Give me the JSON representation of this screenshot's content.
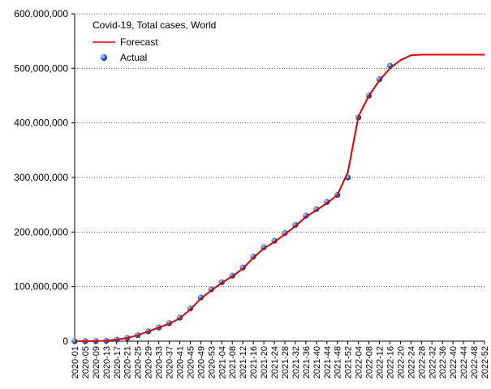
{
  "chart_data": {
    "type": "line",
    "legend_title": "Covid-19, Total cases, World",
    "categories": [
      "2020-01",
      "2020-05",
      "2020-09",
      "2020-13",
      "2020-17",
      "2020-21",
      "2020-25",
      "2020-29",
      "2020-33",
      "2020-37",
      "2020-41",
      "2020-45",
      "2020-49",
      "2020-53",
      "2021-04",
      "2021-08",
      "2021-12",
      "2021-16",
      "2021-20",
      "2021-24",
      "2021-28",
      "2021-32",
      "2021-36",
      "2021-40",
      "2021-44",
      "2021-48",
      "2021-52",
      "2022-04",
      "2022-08",
      "2022-12",
      "2022-16",
      "2022-20",
      "2022-24",
      "2022-28",
      "2022-32",
      "2022-36",
      "2022-40",
      "2022-44",
      "2022-48",
      "2022-52"
    ],
    "series": [
      {
        "name": "Forecast",
        "color": "#e00000",
        "style": "line",
        "values": [
          0,
          20000,
          100000,
          800000,
          3000000,
          6000000,
          11000000,
          18000000,
          25000000,
          32000000,
          42000000,
          58000000,
          78000000,
          93000000,
          107000000,
          119000000,
          133000000,
          153000000,
          170000000,
          182000000,
          196000000,
          211000000,
          228000000,
          240000000,
          253000000,
          268000000,
          310000000,
          412000000,
          450000000,
          478000000,
          500000000,
          515000000,
          524000000,
          525000000,
          525000000,
          525000000,
          525000000,
          525000000,
          525000000,
          525000000
        ]
      },
      {
        "name": "Actual",
        "color": "#2a6fd6",
        "style": "marker",
        "values": [
          0,
          20000,
          100000,
          800000,
          3000000,
          6000000,
          11000000,
          18000000,
          25000000,
          33000000,
          43000000,
          60000000,
          80000000,
          95000000,
          108000000,
          120000000,
          135000000,
          155000000,
          172000000,
          184000000,
          198000000,
          213000000,
          230000000,
          242000000,
          255000000,
          268000000,
          300000000,
          410000000,
          450000000,
          480000000,
          505000000,
          null,
          null,
          null,
          null,
          null,
          null,
          null,
          null,
          null
        ]
      }
    ],
    "ylim": [
      0,
      600000000
    ],
    "yticks": [
      0,
      {
        "value": 100000000,
        "label": "100,000,000"
      },
      {
        "value": 200000000,
        "label": "200,000,000"
      },
      {
        "value": 300000000,
        "label": "300,000,000"
      },
      {
        "value": 400000000,
        "label": "400,000,000"
      },
      {
        "value": 500000000,
        "label": "500,000,000"
      },
      {
        "value": 600000000,
        "label": "600,000,000"
      }
    ],
    "grid": true,
    "legend": "upper left"
  }
}
